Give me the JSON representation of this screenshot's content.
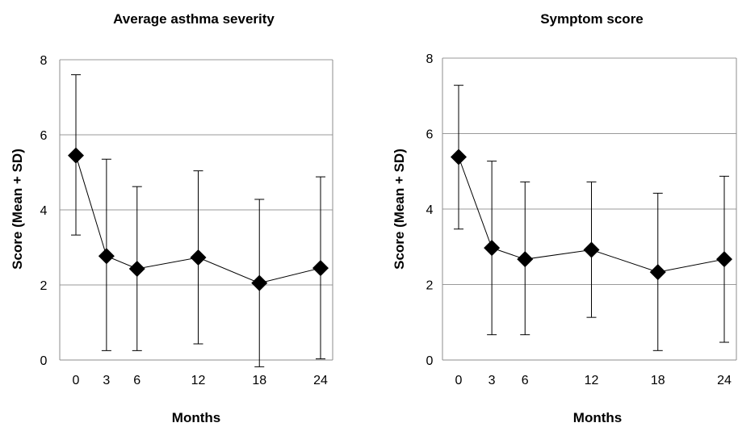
{
  "chart_data": [
    {
      "type": "line",
      "title": "Average asthma severity",
      "xlabel": "Months",
      "ylabel": "Score (Mean +  SD)",
      "x": [
        0,
        3,
        6,
        12,
        18,
        24
      ],
      "x_ticks": [
        "0",
        "3",
        "6",
        "12",
        "18",
        "24"
      ],
      "y_ticks": [
        "0",
        "2",
        "4",
        "6",
        "8"
      ],
      "ylim": [
        0,
        8
      ],
      "grid": true,
      "marker": "diamond",
      "color": "#000000",
      "series": [
        {
          "values": [
            5.45,
            2.77,
            2.43,
            2.73,
            2.05,
            2.45
          ],
          "error_upper": [
            7.6,
            5.35,
            4.62,
            5.04,
            4.28,
            4.88
          ],
          "error_lower": [
            3.33,
            0.25,
            0.25,
            0.43,
            -0.18,
            0.03
          ]
        }
      ]
    },
    {
      "type": "line",
      "title": "Symptom score",
      "xlabel": "Months",
      "ylabel": "Score (Mean + SD)",
      "x": [
        0,
        3,
        6,
        12,
        18,
        24
      ],
      "x_ticks": [
        "0",
        "3",
        "6",
        "12",
        "18",
        "24"
      ],
      "y_ticks": [
        "0",
        "2",
        "4",
        "6",
        "8"
      ],
      "ylim": [
        0,
        8
      ],
      "grid": true,
      "marker": "diamond",
      "color": "#000000",
      "series": [
        {
          "values": [
            5.38,
            2.97,
            2.67,
            2.92,
            2.33,
            2.67
          ],
          "error_upper": [
            7.28,
            5.27,
            4.72,
            4.72,
            4.42,
            4.87
          ],
          "error_lower": [
            3.47,
            0.67,
            0.67,
            1.13,
            0.25,
            0.47
          ]
        }
      ]
    }
  ]
}
